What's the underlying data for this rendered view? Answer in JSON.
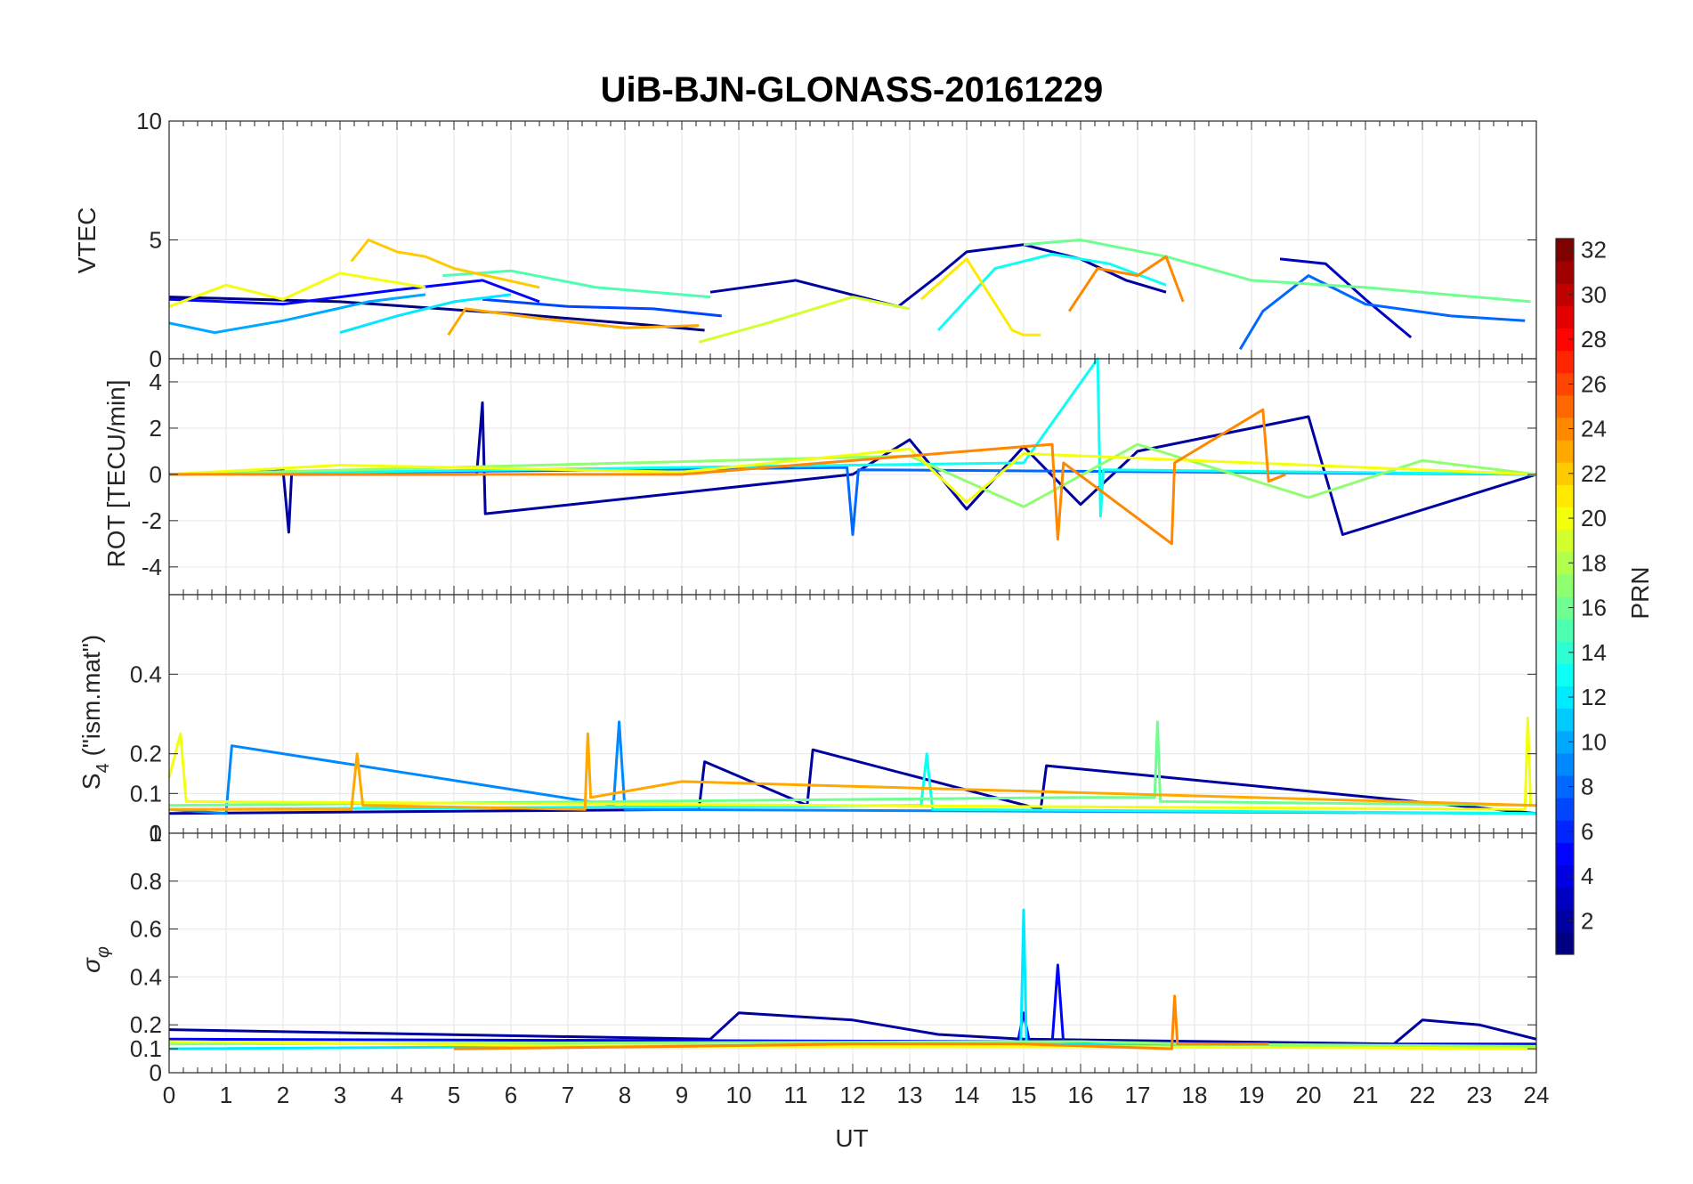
{
  "chart_data": {
    "type": "line",
    "title": "UiB-BJN-GLONASS-20161229",
    "xlabel": "UT",
    "xlim": [
      0,
      24
    ],
    "xticks": [
      "0",
      "1",
      "2",
      "3",
      "4",
      "5",
      "6",
      "7",
      "8",
      "9",
      "10",
      "11",
      "12",
      "13",
      "14",
      "15",
      "16",
      "17",
      "18",
      "19",
      "20",
      "21",
      "22",
      "23",
      "24"
    ],
    "grid": true,
    "colorbar": {
      "label": "PRN",
      "range": [
        1,
        32
      ],
      "ticks": [
        "2",
        "4",
        "6",
        "8",
        "10",
        "12",
        "14",
        "16",
        "18",
        "20",
        "22",
        "24",
        "26",
        "28",
        "30",
        "32"
      ],
      "colormap": "jet"
    },
    "panels": [
      {
        "id": "vtec",
        "ylabel": "VTEC",
        "ylim": [
          0,
          10
        ],
        "yticks": [
          "0",
          "5",
          "10"
        ],
        "series": [
          {
            "prn": 1,
            "x": [
              0,
              3,
              6,
              8.5,
              9.4
            ],
            "values": [
              2.6,
              2.4,
              1.9,
              1.4,
              1.2
            ]
          },
          {
            "prn": 2,
            "x": [
              9.5,
              11,
              12.8,
              13.5,
              14,
              15,
              16,
              16.8,
              17.5
            ],
            "values": [
              2.8,
              3.3,
              2.2,
              3.5,
              4.5,
              4.8,
              4.2,
              3.3,
              2.8
            ]
          },
          {
            "prn": 3,
            "x": [
              19.5,
              20.3,
              21,
              21.8
            ],
            "values": [
              4.2,
              4.0,
              2.5,
              0.9
            ]
          },
          {
            "prn": 5,
            "x": [
              0,
              2,
              4,
              5.5,
              6.5
            ],
            "values": [
              2.5,
              2.3,
              2.9,
              3.3,
              2.4
            ]
          },
          {
            "prn": 7,
            "x": [
              5.5,
              7,
              8.5,
              9.7
            ],
            "values": [
              2.5,
              2.2,
              2.1,
              1.8
            ]
          },
          {
            "prn": 8,
            "x": [
              18.8,
              19.2,
              20,
              21,
              22.5,
              23.8
            ],
            "values": [
              0.4,
              2.0,
              3.5,
              2.3,
              1.8,
              1.6
            ]
          },
          {
            "prn": 10,
            "x": [
              0,
              0.8,
              2,
              3.5,
              4.5
            ],
            "values": [
              1.5,
              1.1,
              1.6,
              2.4,
              2.7
            ]
          },
          {
            "prn": 12,
            "x": [
              3,
              4,
              5,
              6
            ],
            "values": [
              1.1,
              1.8,
              2.4,
              2.7
            ]
          },
          {
            "prn": 13,
            "x": [
              13.5,
              14.5,
              15.5,
              16.5,
              17.5
            ],
            "values": [
              1.2,
              3.8,
              4.4,
              4.0,
              3.1
            ]
          },
          {
            "prn": 15,
            "x": [
              4.8,
              6,
              7.5,
              9.5
            ],
            "values": [
              3.5,
              3.7,
              3.0,
              2.6
            ]
          },
          {
            "prn": 16,
            "x": [
              15,
              16,
              17.5,
              19,
              21,
              23.9
            ],
            "values": [
              4.8,
              5.0,
              4.3,
              3.3,
              3.0,
              2.4
            ]
          },
          {
            "prn": 19,
            "x": [
              9.3,
              10.5,
              12,
              13
            ],
            "values": [
              0.7,
              1.5,
              2.6,
              2.1
            ]
          },
          {
            "prn": 20,
            "x": [
              0,
              1,
              2,
              3,
              4.5
            ],
            "values": [
              2.2,
              3.1,
              2.5,
              3.6,
              3.0
            ]
          },
          {
            "prn": 21,
            "x": [
              13.2,
              14,
              14.8,
              15,
              15.3
            ],
            "values": [
              2.5,
              4.2,
              1.2,
              1.0,
              1.0
            ]
          },
          {
            "prn": 22,
            "x": [
              3.2,
              3.5,
              4,
              4.5,
              5,
              6.5
            ],
            "values": [
              4.1,
              5.0,
              4.5,
              4.3,
              3.8,
              3.0
            ]
          },
          {
            "prn": 23,
            "x": [
              4.9,
              5.2,
              6.5,
              8,
              9.3
            ],
            "values": [
              1.0,
              2.1,
              1.7,
              1.3,
              1.4
            ]
          },
          {
            "prn": 24,
            "x": [
              15.8,
              16.3,
              17,
              17.5,
              17.8
            ],
            "values": [
              2.0,
              3.8,
              3.5,
              4.3,
              2.4
            ]
          }
        ]
      },
      {
        "id": "rot",
        "ylabel": "ROT [TECU/min]",
        "ylim": [
          -5.2,
          5
        ],
        "yticks": [
          "-4",
          "-2",
          "0",
          "2",
          "4"
        ],
        "series": [
          {
            "prn": 2,
            "x": [
              0,
              2,
              2.1,
              2.15,
              5.4,
              5.5,
              5.55,
              12,
              13,
              14,
              15,
              16,
              17,
              20,
              20.6,
              24
            ],
            "values": [
              0,
              0.2,
              -2.5,
              0,
              0,
              3.1,
              -1.7,
              0,
              1.5,
              -1.5,
              1.2,
              -1.3,
              1.0,
              2.5,
              -2.6,
              0
            ]
          },
          {
            "prn": 8,
            "x": [
              0,
              11.9,
              12,
              12.1,
              24
            ],
            "values": [
              0,
              0.3,
              -2.6,
              0.2,
              0
            ]
          },
          {
            "prn": 13,
            "x": [
              0,
              15,
              16.3,
              16.35,
              16.4,
              24
            ],
            "values": [
              0,
              0.5,
              5.0,
              -1.8,
              0.2,
              0
            ]
          },
          {
            "prn": 17,
            "x": [
              0,
              13,
              15,
              17,
              20,
              22,
              24
            ],
            "values": [
              0,
              0.8,
              -1.4,
              1.3,
              -1.0,
              0.6,
              0
            ]
          },
          {
            "prn": 20,
            "x": [
              0,
              3,
              9,
              13,
              14,
              15,
              19,
              24
            ],
            "values": [
              0,
              0.4,
              0.1,
              1.1,
              -1.2,
              0.9,
              0.5,
              0
            ]
          },
          {
            "prn": 24,
            "x": [
              0,
              5,
              9,
              15.5,
              15.6,
              15.7,
              17.6,
              17.65,
              19.2,
              19.3,
              19.6
            ],
            "values": [
              0,
              0,
              0,
              1.3,
              -2.8,
              0.5,
              -3.0,
              0.5,
              2.8,
              -0.3,
              0
            ]
          }
        ]
      },
      {
        "id": "s4",
        "ylabel": "S4 (\"ism.mat\")",
        "ylabel_main": "S",
        "ylabel_sub": "4",
        "ylabel_rest": " (\"ism.mat\")",
        "ylim": [
          0,
          0.6
        ],
        "yticks": [
          "0",
          "0.1",
          "0.2",
          "0.4"
        ],
        "series": [
          {
            "prn": 2,
            "x": [
              0,
              9.3,
              9.4,
              11.2,
              11.3,
              15.3,
              15.4,
              24
            ],
            "values": [
              0.05,
              0.06,
              0.18,
              0.07,
              0.21,
              0.06,
              0.17,
              0.05
            ]
          },
          {
            "prn": 9,
            "x": [
              0,
              1,
              1.1,
              7.8,
              7.9,
              8,
              24
            ],
            "values": [
              0.06,
              0.05,
              0.22,
              0.07,
              0.28,
              0.06,
              0.05
            ]
          },
          {
            "prn": 13,
            "x": [
              0,
              13.2,
              13.3,
              13.4,
              24
            ],
            "values": [
              0.06,
              0.07,
              0.2,
              0.06,
              0.05
            ]
          },
          {
            "prn": 16,
            "x": [
              0,
              16,
              17.3,
              17.35,
              17.4,
              24
            ],
            "values": [
              0.07,
              0.09,
              0.09,
              0.28,
              0.08,
              0.07
            ]
          },
          {
            "prn": 20,
            "x": [
              0,
              0.2,
              0.3,
              23.8,
              23.85,
              23.9,
              24
            ],
            "values": [
              0.14,
              0.25,
              0.08,
              0.06,
              0.29,
              0.07,
              0.07
            ]
          },
          {
            "prn": 23,
            "x": [
              0,
              3.2,
              3.3,
              3.4,
              7.3,
              7.35,
              7.4,
              9,
              24
            ],
            "values": [
              0.06,
              0.06,
              0.2,
              0.07,
              0.06,
              0.25,
              0.09,
              0.13,
              0.07
            ]
          }
        ]
      },
      {
        "id": "sigma_phi",
        "ylabel": "σφ",
        "ylabel_main": "σ",
        "ylabel_sub": "φ",
        "ylim": [
          0,
          1
        ],
        "yticks": [
          "0",
          "0.1",
          "0.2",
          "0.4",
          "0.6",
          "0.8",
          "1"
        ],
        "series": [
          {
            "prn": 2,
            "x": [
              0,
              9.5,
              10,
              12,
              13.5,
              15,
              21.5,
              22,
              23,
              24
            ],
            "values": [
              0.18,
              0.14,
              0.25,
              0.22,
              0.16,
              0.14,
              0.12,
              0.22,
              0.2,
              0.14
            ]
          },
          {
            "prn": 5,
            "x": [
              0,
              14.9,
              15,
              15.1,
              15.5,
              15.6,
              15.7,
              24
            ],
            "values": [
              0.14,
              0.13,
              0.25,
              0.13,
              0.12,
              0.45,
              0.12,
              0.12
            ]
          },
          {
            "prn": 12,
            "x": [
              0,
              14.95,
              15.0,
              15.05,
              24
            ],
            "values": [
              0.1,
              0.12,
              0.68,
              0.12,
              0.1
            ]
          },
          {
            "prn": 17,
            "x": [
              0,
              16,
              18,
              24
            ],
            "values": [
              0.12,
              0.13,
              0.12,
              0.11
            ]
          },
          {
            "prn": 20,
            "x": [
              0,
              8,
              16,
              24
            ],
            "values": [
              0.13,
              0.11,
              0.11,
              0.1
            ]
          },
          {
            "prn": 24,
            "x": [
              5,
              9,
              12,
              15,
              17.6,
              17.65,
              17.7,
              19.3
            ],
            "values": [
              0.1,
              0.11,
              0.12,
              0.12,
              0.1,
              0.32,
              0.12,
              0.12
            ]
          }
        ]
      }
    ]
  }
}
